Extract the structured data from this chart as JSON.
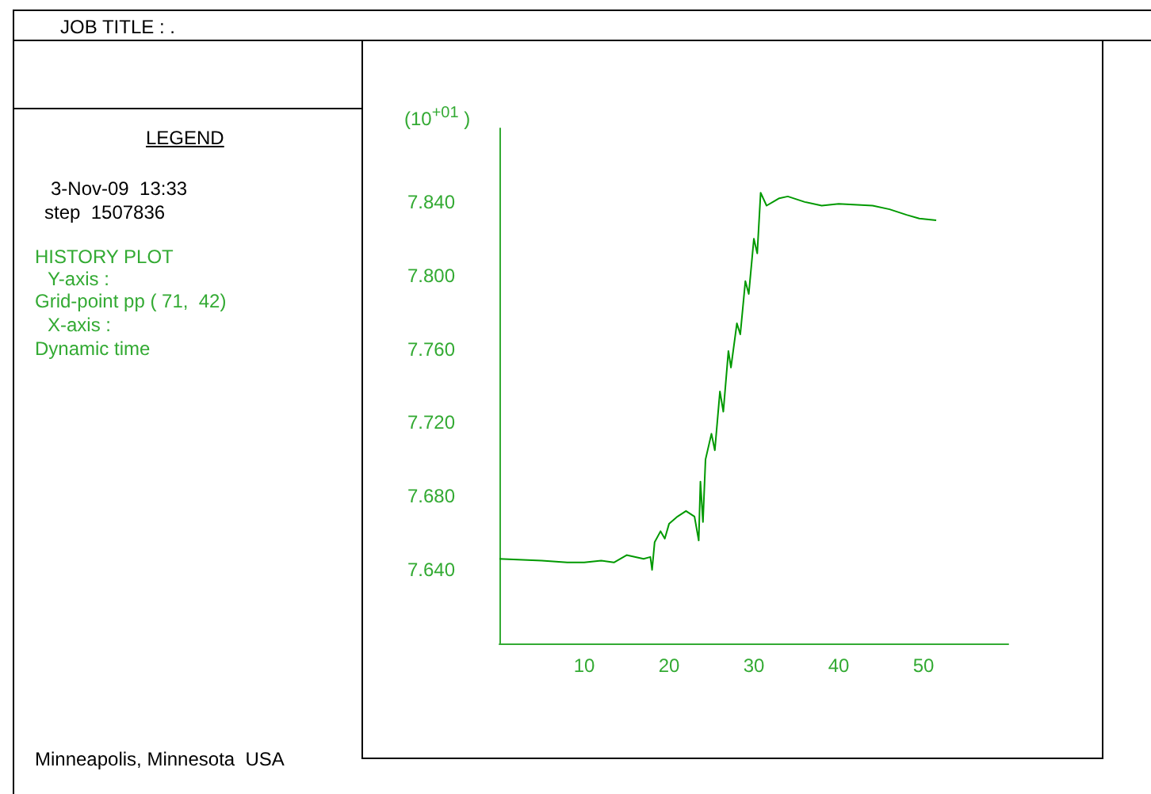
{
  "chart_data": {
    "type": "line",
    "title": "JOB TITLE : .",
    "ylabel": "(10$^{+01}$ )",
    "annotations": [
      "LEGEND",
      "3-Nov-09  13:33",
      "step  1507836",
      "HISTORY PLOT",
      "Y-axis :",
      "Grid-point pp ( 71,  42)",
      "X-axis :",
      "Dynamic time",
      "Minneapolis, Minnesota  USA"
    ],
    "series": [
      {
        "color": "#009900",
        "x": [
          0,
          5,
          8,
          10,
          12,
          13.5,
          15,
          17,
          17.8,
          18,
          18.3,
          19,
          19.5,
          20,
          21,
          22,
          23,
          23.5,
          23.7,
          24,
          24.3,
          25,
          25.4,
          26,
          26.4,
          27,
          27.3,
          28,
          28.4,
          29,
          29.4,
          30,
          30.4,
          30.8,
          31.5,
          33,
          34,
          36,
          38,
          40,
          44,
          46,
          48,
          49.5,
          51.5
        ],
        "values": [
          7.646,
          7.645,
          7.644,
          7.644,
          7.645,
          7.644,
          7.648,
          7.646,
          7.647,
          7.64,
          7.655,
          7.661,
          7.657,
          7.665,
          7.669,
          7.672,
          7.669,
          7.656,
          7.688,
          7.666,
          7.7,
          7.714,
          7.705,
          7.737,
          7.726,
          7.759,
          7.75,
          7.774,
          7.768,
          7.797,
          7.79,
          7.82,
          7.812,
          7.845,
          7.838,
          7.842,
          7.843,
          7.84,
          7.838,
          7.839,
          7.838,
          7.836,
          7.833,
          7.831,
          7.83
        ]
      }
    ],
    "xlim": [
      0,
      60
    ],
    "xticks": [
      10,
      20,
      30,
      40,
      50
    ],
    "ylim": [
      7.6,
      7.88
    ],
    "yticks": [
      {
        "value": 7.64,
        "label": "7.640"
      },
      {
        "value": 7.68,
        "label": "7.680"
      },
      {
        "value": 7.72,
        "label": "7.720"
      },
      {
        "value": 7.76,
        "label": "7.760"
      },
      {
        "value": 7.8,
        "label": "7.800"
      },
      {
        "value": 7.84,
        "label": "7.840"
      }
    ],
    "grid": false,
    "marker": "none",
    "line_style": "solid"
  }
}
